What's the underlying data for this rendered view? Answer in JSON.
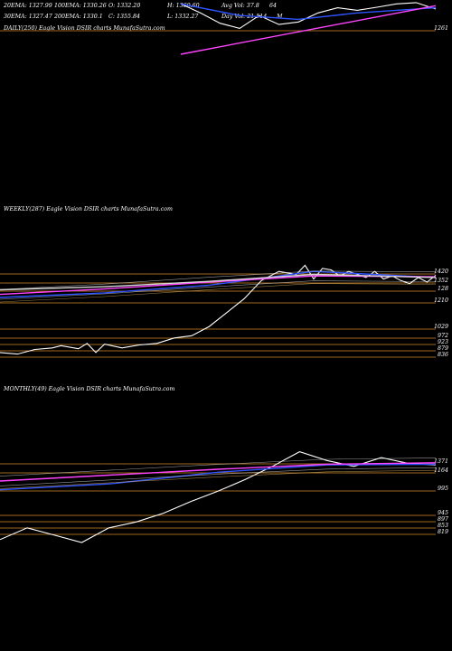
{
  "header": {
    "row1": [
      "20EMA: 1327.99",
      "100EMA: 1330.26",
      "O: 1332.20",
      "H: 1360.60",
      "Avg Vol: 37.8",
      "64"
    ],
    "row2": [
      "30EMA: 1327.47",
      "200EMA: 1330.1",
      "C: 1355.84",
      "L: 1332.27",
      "Day Vol: 21.514",
      "M"
    ]
  },
  "colors": {
    "background": "#000000",
    "price": "#ffffff",
    "ema_short": "#2f54ff",
    "ema_long": "#ff44ff",
    "ema_mid": "#d6d6d6",
    "ema_warm": "#d8b060",
    "level_line": "#d48a2c"
  },
  "chart_data": [
    {
      "type": "line",
      "title": "DAILY(250) Eagle Vision DSIR charts MunafaSutra.com",
      "levels": [
        "1261"
      ],
      "series": [
        {
          "name": "",
          "color_key": "price",
          "x": [
            0,
            1,
            2,
            3,
            4,
            5,
            6,
            7,
            8,
            9,
            10,
            11,
            12,
            13
          ],
          "y": [
            1375,
            1340,
            1300,
            1280,
            1330,
            1295,
            1305,
            1340,
            1360,
            1350,
            1362,
            1375,
            1380,
            1355
          ]
        },
        {
          "name": "",
          "color_key": "ema_short",
          "x": [
            0,
            3,
            6,
            9,
            13
          ],
          "y": [
            1375,
            1330,
            1315,
            1340,
            1360
          ]
        },
        {
          "name": "",
          "color_key": "ema_long",
          "x": [
            0,
            13
          ],
          "y": [
            1180,
            1368
          ]
        }
      ]
    },
    {
      "type": "line",
      "title": "WEEKLY(287) Eagle Vision DSIR charts MunafaSutra.com",
      "levels": [
        "1420",
        "1352",
        "128",
        "1210",
        "1029",
        "972",
        "923",
        "879",
        "836"
      ],
      "series": [
        {
          "name": "",
          "color_key": "price",
          "x": [
            0,
            10,
            20,
            30,
            35,
            45,
            50,
            55,
            60,
            70,
            80,
            90,
            100,
            110,
            120,
            130,
            140,
            150,
            160,
            170,
            175,
            180,
            185,
            190,
            195,
            200,
            205,
            210,
            215,
            220,
            225,
            230,
            235,
            240,
            245,
            250
          ],
          "y": [
            850,
            840,
            870,
            880,
            895,
            875,
            910,
            850,
            905,
            880,
            900,
            910,
            945,
            960,
            1020,
            1110,
            1200,
            1320,
            1380,
            1360,
            1420,
            1330,
            1400,
            1390,
            1350,
            1380,
            1360,
            1340,
            1380,
            1330,
            1350,
            1320,
            1300,
            1340,
            1310,
            1355
          ]
        },
        {
          "name": "",
          "color_key": "ema_short",
          "x": [
            0,
            60,
            120,
            180,
            250
          ],
          "y": [
            1210,
            1240,
            1290,
            1380,
            1340
          ]
        },
        {
          "name": "",
          "color_key": "ema_long",
          "x": [
            0,
            60,
            120,
            180,
            250
          ],
          "y": [
            1230,
            1265,
            1310,
            1350,
            1345
          ]
        },
        {
          "name": "",
          "color_key": "ema_mid",
          "x": [
            0,
            60,
            120,
            180,
            250
          ],
          "y": [
            1260,
            1280,
            1315,
            1360,
            1340
          ]
        }
      ]
    },
    {
      "type": "line",
      "title": "MONTHLY(49) Eagle Vision DSIR charts MunafaSutra.com",
      "levels": [
        "1371",
        "1164",
        "995",
        "945",
        "897",
        "853",
        "819"
      ],
      "series": [
        {
          "name": "",
          "color_key": "price",
          "x": [
            0,
            3,
            6,
            9,
            12,
            15,
            18,
            21,
            24,
            27,
            30,
            33,
            36,
            39,
            42,
            45,
            48
          ],
          "y": [
            820,
            900,
            850,
            800,
            900,
            940,
            1000,
            1080,
            1150,
            1230,
            1320,
            1420,
            1360,
            1320,
            1380,
            1340,
            1330
          ]
        },
        {
          "name": "",
          "color_key": "ema_short",
          "x": [
            0,
            12,
            24,
            36,
            48
          ],
          "y": [
            1160,
            1200,
            1280,
            1330,
            1335
          ]
        },
        {
          "name": "",
          "color_key": "ema_long",
          "x": [
            0,
            12,
            24,
            36,
            48
          ],
          "y": [
            1220,
            1260,
            1300,
            1335,
            1345
          ]
        }
      ]
    }
  ]
}
